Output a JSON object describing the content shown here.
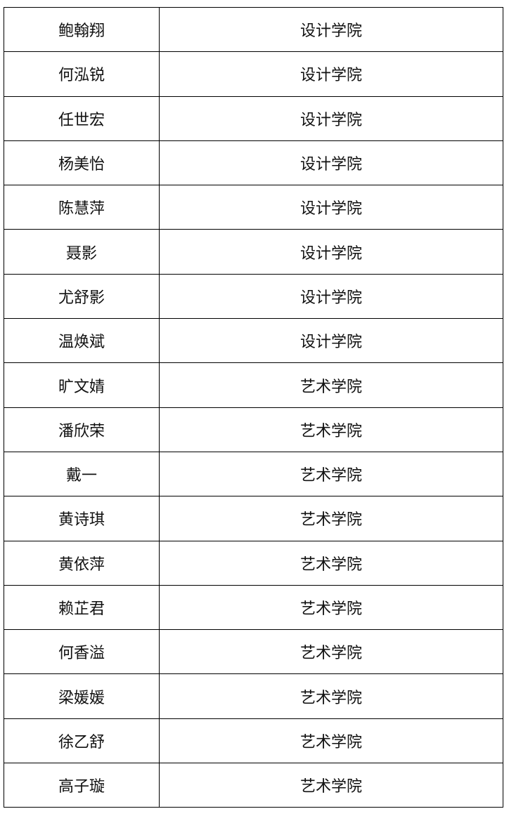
{
  "table": {
    "rows": [
      [
        "鲍翰翔",
        "设计学院"
      ],
      [
        "何泓锐",
        "设计学院"
      ],
      [
        "任世宏",
        "设计学院"
      ],
      [
        "杨美怡",
        "设计学院"
      ],
      [
        "陈慧萍",
        "设计学院"
      ],
      [
        "聂影",
        "设计学院"
      ],
      [
        "尤舒影",
        "设计学院"
      ],
      [
        "温焕斌",
        "设计学院"
      ],
      [
        "旷文婧",
        "艺术学院"
      ],
      [
        "潘欣荣",
        "艺术学院"
      ],
      [
        "戴一",
        "艺术学院"
      ],
      [
        "黄诗琪",
        "艺术学院"
      ],
      [
        "黄依萍",
        "艺术学院"
      ],
      [
        "赖芷君",
        "艺术学院"
      ],
      [
        "何香溢",
        "艺术学院"
      ],
      [
        "梁媛媛",
        "艺术学院"
      ],
      [
        "徐乙舒",
        "艺术学院"
      ],
      [
        "高子璇",
        "艺术学院"
      ]
    ]
  }
}
